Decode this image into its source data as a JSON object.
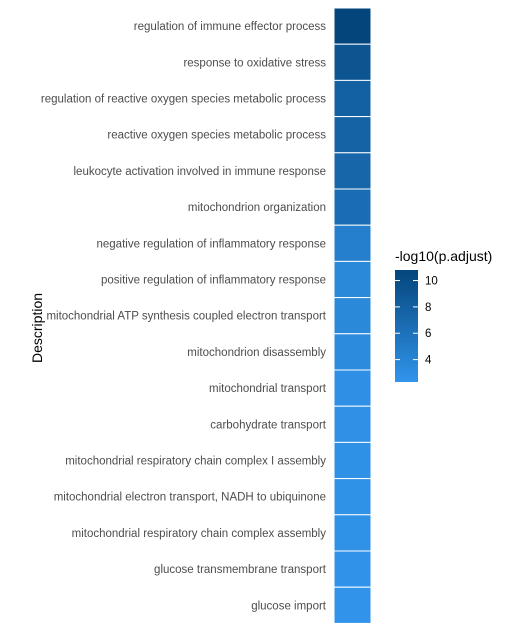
{
  "chart_data": {
    "type": "heatmap",
    "xlabel": "",
    "ylabel": "Description",
    "legend_title": "-log10(p.adjust)",
    "legend_placement": "right",
    "categories": [
      "regulation of immune effector process",
      "response to oxidative stress",
      "regulation of reactive oxygen species metabolic process",
      "reactive oxygen species metabolic process",
      "leukocyte activation involved in immune response",
      "mitochondrion organization",
      "negative regulation of inflammatory response",
      "positive regulation of inflammatory response",
      "mitochondrial ATP synthesis coupled electron transport",
      "mitochondrion disassembly",
      "mitochondrial transport",
      "carbohydrate transport",
      "mitochondrial respiratory chain complex I assembly",
      "mitochondrial electron transport, NADH to ubiquinone",
      "mitochondrial respiratory chain complex assembly",
      "glucose transmembrane transport",
      "glucose import"
    ],
    "values": [
      10.8,
      9.2,
      7.9,
      7.6,
      7.3,
      6.6,
      4.6,
      3.5,
      3.5,
      3.3,
      2.8,
      2.7,
      2.6,
      2.5,
      2.5,
      2.4,
      2.3
    ],
    "color_range": [
      2.3,
      10.8
    ],
    "color_low": "#3194ea",
    "color_high": "#04467c",
    "legend_ticks": [
      4,
      6,
      8,
      10
    ]
  }
}
